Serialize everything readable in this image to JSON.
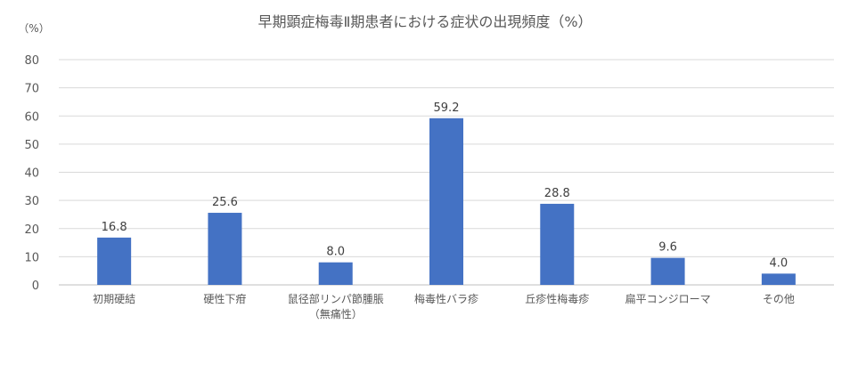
{
  "chart_data": {
    "type": "bar",
    "title": "早期顕症梅毒Ⅱ期患者における症状の出現頻度（%）",
    "ylabel": "（%）",
    "xlabel": "",
    "ylim": [
      0,
      80
    ],
    "yticks": [
      0,
      10,
      20,
      30,
      40,
      50,
      60,
      70,
      80
    ],
    "grid": true,
    "legend": "none",
    "categories": [
      [
        "初期硬結"
      ],
      [
        "硬性下疳"
      ],
      [
        "鼠径部リンパ節腫脹",
        "（無痛性）"
      ],
      [
        "梅毒性バラ疹"
      ],
      [
        "丘疹性梅毒疹"
      ],
      [
        "扁平コンジローマ"
      ],
      [
        "その他"
      ]
    ],
    "values": [
      16.8,
      25.6,
      8.0,
      59.2,
      28.8,
      9.6,
      4.0
    ],
    "value_labels": [
      "16.8",
      "25.6",
      "8.0",
      "59.2",
      "28.8",
      "9.6",
      "4.0"
    ],
    "colors": {
      "bar": "#4472c4",
      "grid": "#d9d9d9",
      "axis": "#bfbfbf",
      "text": "#595959"
    }
  }
}
